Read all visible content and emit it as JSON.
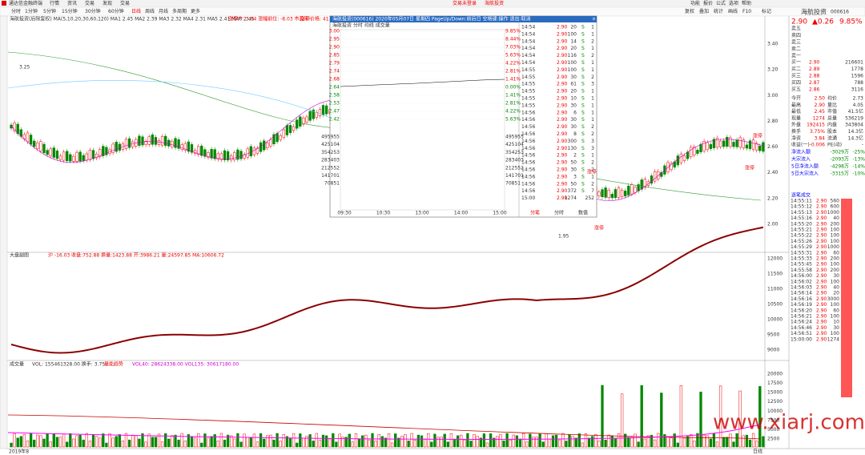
{
  "app": {
    "name": "通达信金融终端",
    "menu": [
      "行情",
      "资讯",
      "交易",
      "发现",
      "交易"
    ],
    "status": "交易未登录",
    "stock_link": "海航投资",
    "right_menu": [
      "功能",
      "报价",
      "公式",
      "选项",
      "帮助"
    ]
  },
  "toolbar": {
    "periods": [
      "分时",
      "1分钟",
      "5分钟",
      "15分钟",
      "30分钟",
      "60分钟",
      "日线",
      "周线",
      "月线",
      "多周期",
      "更多"
    ],
    "tools": [
      "复权",
      "叠加",
      "统计",
      "画线",
      "F10",
      "标记"
    ]
  },
  "price_pane": {
    "legend": "海航投资(后除复权) MA(5,10,20,30,60,120) MA1 2.45 MA2 2.39 MA3 2.32 MA4 2.31 MA5 2.41 MA6 2.45",
    "alert": "涨停产: 3.04 涨幅前位: -8.03 市盈率:",
    "alert2": "涨停价格: 41.49",
    "high": "3.25",
    "low": "1.95",
    "tags": [
      "涨停",
      "涨停",
      "涨停",
      "涨停"
    ],
    "yticks": [
      "3.40",
      "3.20",
      "3.00",
      "2.80",
      "2.60",
      "2.40",
      "2.20",
      "2.00"
    ]
  },
  "index_pane": {
    "title": "大盘副图",
    "legend": "沪 -16.03 收盘:752.88 换量:1423.88 开:3986.21 量:24597.85 MA:10606.72",
    "yticks": [
      "12000",
      "11500",
      "11000",
      "10500",
      "10000",
      "9500",
      "9000"
    ]
  },
  "volume_pane": {
    "title": "成交量",
    "legend": "VOL: 155461328.00 换手: 3.75",
    "legend2": "量能趋势",
    "legend3": "VOL40: 28624338.00 VOL135: 30617180.00",
    "yticks": [
      "20000",
      "17500",
      "15000",
      "12500",
      "10000",
      "7500",
      "5000",
      "2500"
    ]
  },
  "x_axis": {
    "start": "2019年8",
    "end": "日线"
  },
  "popup": {
    "title": "海航投资(000616) 2020年05月07日 星期四 PageUp/Down:前后日 空格键:操作 退出:取消",
    "sub": "海航投资 分时 均线 成交量",
    "prices": [
      "3.00",
      "2.95",
      "2.90",
      "2.85",
      "2.79",
      "2.74",
      "2.68",
      "2.64",
      "2.58",
      "2.53",
      "2.47",
      "2.42"
    ],
    "pcts": [
      "9.85%",
      "8.44%",
      "7.03%",
      "5.63%",
      "4.22%",
      "2.81%",
      "1.41%",
      "0.00%",
      "1.41%",
      "2.81%",
      "4.22%",
      "5.63%"
    ],
    "vols": [
      "495955",
      "425104",
      "354253",
      "283403",
      "212552",
      "141701",
      "70851"
    ],
    "times": [
      "09:30",
      "10:30",
      "13:00",
      "14:00",
      "15:00"
    ],
    "tabs": [
      "分笔",
      "分时",
      "数值"
    ],
    "trades": [
      [
        "14:54",
        "2.90",
        "20",
        "S",
        "1"
      ],
      [
        "14:54",
        "2.90",
        "100",
        "S",
        "1"
      ],
      [
        "14:54",
        "2.90",
        "14",
        "S",
        "2"
      ],
      [
        "14:54",
        "2.90",
        "20",
        "S",
        "1"
      ],
      [
        "14:54",
        "2.90",
        "116",
        "S",
        "2"
      ],
      [
        "14:54",
        "2.90",
        "100",
        "S",
        "1"
      ],
      [
        "14:55",
        "2.90",
        "100",
        "S",
        "1"
      ],
      [
        "14:55",
        "2.90",
        "30",
        "S",
        "2"
      ],
      [
        "14:55",
        "2.90",
        "61",
        "S",
        "3"
      ],
      [
        "14:55",
        "2.90",
        "20",
        "S",
        "1"
      ],
      [
        "14:55",
        "2.90",
        "10",
        "S",
        "1"
      ],
      [
        "14:55",
        "2.90",
        "30",
        "S",
        "1"
      ],
      [
        "14:56",
        "2.90",
        "6",
        "S",
        "1"
      ],
      [
        "14:56",
        "2.90",
        "30",
        "S",
        "1"
      ],
      [
        "14:56",
        "2.90",
        "30",
        "S",
        "2"
      ],
      [
        "14:56",
        "2.90",
        "8",
        "S",
        "2"
      ],
      [
        "14:56",
        "2.90",
        "300",
        "S",
        "3"
      ],
      [
        "14:56",
        "2.90",
        "130",
        "S",
        "3"
      ],
      [
        "14:56",
        "2.90",
        "2",
        "S",
        "1"
      ],
      [
        "14:56",
        "2.90",
        "50",
        "S",
        "2"
      ],
      [
        "14:56",
        "2.90",
        "30",
        "S",
        "2"
      ],
      [
        "14:56",
        "2.90",
        "3",
        "S",
        "1"
      ],
      [
        "14:56",
        "2.90",
        "50",
        "S",
        "2"
      ],
      [
        "14:56",
        "2.90",
        "372",
        "S",
        "7"
      ],
      [
        "15:00",
        "2.90",
        "1274",
        "",
        "252"
      ]
    ]
  },
  "quote": {
    "name": "海航投资",
    "code": "000616",
    "price": "2.90",
    "change": "▲0.26",
    "pct": "9.85%",
    "asks": [
      "卖五",
      "卖四",
      "卖三",
      "卖二",
      "卖一"
    ],
    "bids": [
      [
        "买一",
        "2.90",
        "216601"
      ],
      [
        "买二",
        "2.89",
        "1778"
      ],
      [
        "买三",
        "2.88",
        "1596"
      ],
      [
        "买四",
        "2.87",
        "788"
      ],
      [
        "买五",
        "2.86",
        "3116"
      ]
    ],
    "stats": [
      [
        "今开",
        "2.50",
        "均价",
        "2.73"
      ],
      [
        "最高",
        "2.90",
        "量比",
        "4.05"
      ],
      [
        "最低",
        "2.45",
        "市值",
        "41.5亿"
      ],
      [
        "现量",
        "1274",
        "总量",
        "536219"
      ],
      [
        "外盘",
        "192415",
        "内盘",
        "343804"
      ],
      [
        "换手",
        "3.75%",
        "股本",
        "14.3亿"
      ],
      [
        "净资",
        "3.84",
        "流通",
        "14.3亿"
      ],
      [
        "收益(一)",
        "-0.006",
        "PE(动)",
        "-"
      ]
    ],
    "flows": [
      [
        "净流入额",
        "-3029万",
        "-25%"
      ],
      [
        "大宗流入",
        "-2093万",
        "-13%"
      ],
      [
        "5日净流入额",
        "-4298万",
        "-14%"
      ],
      [
        "5日大宗流入",
        "-3315万",
        "-10%"
      ]
    ],
    "ticks_title": "逐笔成交",
    "ticks": [
      [
        "14:55:11",
        "2.90",
        "560"
      ],
      [
        "14:55:12",
        "2.90",
        "600"
      ],
      [
        "14:55:13",
        "2.90",
        "1000"
      ],
      [
        "14:55:16",
        "2.90",
        "40"
      ],
      [
        "14:55:20",
        "2.90",
        "200"
      ],
      [
        "14:55:21",
        "2.90",
        "100"
      ],
      [
        "14:55:22",
        "2.90",
        "100"
      ],
      [
        "14:55:26",
        "2.90",
        "100"
      ],
      [
        "14:55:29",
        "2.90",
        "1000"
      ],
      [
        "14:55:31",
        "2.90",
        "60"
      ],
      [
        "14:55:33",
        "2.90",
        "200"
      ],
      [
        "14:55:45",
        "2.90",
        "100"
      ],
      [
        "14:55:58",
        "2.90",
        "200"
      ],
      [
        "14:56:00",
        "2.90",
        "30"
      ],
      [
        "14:56:02",
        "2.90",
        "100"
      ],
      [
        "14:56:03",
        "2.90",
        "40"
      ],
      [
        "14:56:14",
        "2.90",
        "20"
      ],
      [
        "14:56:16",
        "2.90",
        "3000"
      ],
      [
        "14:56:19",
        "2.90",
        "100"
      ],
      [
        "14:56:20",
        "2.90",
        "60"
      ],
      [
        "14:56:21",
        "2.90",
        "100"
      ],
      [
        "14:56:24",
        "2.90",
        "10"
      ],
      [
        "14:56:46",
        "2.90",
        "30"
      ],
      [
        "14:56:51",
        "2.90",
        "100"
      ],
      [
        "15:00:00",
        "2.90",
        "1274"
      ]
    ]
  },
  "watermark": "www.xiarj.com"
}
